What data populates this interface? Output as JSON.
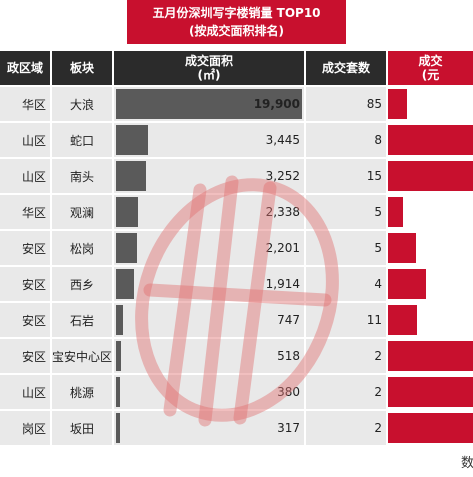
{
  "title": {
    "line1": "五月份深圳写字楼销量 TOP10",
    "line2": "(按成交面积排名)"
  },
  "headers": {
    "region": "政区域",
    "block": "板块",
    "area_line1": "成交面积",
    "area_line2": "(㎡)",
    "units": "成交套数",
    "price_line1": "成交",
    "price_line2": "(元"
  },
  "chart_data": {
    "type": "table",
    "columns": [
      "区域",
      "板块",
      "成交面积(㎡)",
      "成交套数"
    ],
    "rows": [
      {
        "region": "华区",
        "block": "大浪",
        "area": 19900,
        "area_label": "19,900",
        "units": 85,
        "units_label": "85",
        "price_bar": 0.22
      },
      {
        "region": "山区",
        "block": "蛇口",
        "area": 3445,
        "area_label": "3,445",
        "units": 8,
        "units_label": "8",
        "price_bar": 1.0
      },
      {
        "region": "山区",
        "block": "南头",
        "area": 3252,
        "area_label": "3,252",
        "units": 15,
        "units_label": "15",
        "price_bar": 1.0
      },
      {
        "region": "华区",
        "block": "观澜",
        "area": 2338,
        "area_label": "2,338",
        "units": 5,
        "units_label": "5",
        "price_bar": 0.18
      },
      {
        "region": "安区",
        "block": "松岗",
        "area": 2201,
        "area_label": "2,201",
        "units": 5,
        "units_label": "5",
        "price_bar": 0.33
      },
      {
        "region": "安区",
        "block": "西乡",
        "area": 1914,
        "area_label": "1,914",
        "units": 4,
        "units_label": "4",
        "price_bar": 0.45
      },
      {
        "region": "安区",
        "block": "石岩",
        "area": 747,
        "area_label": "747",
        "units": 11,
        "units_label": "11",
        "price_bar": 0.34
      },
      {
        "region": "安区",
        "block": "宝安中心区",
        "area": 518,
        "area_label": "518",
        "units": 2,
        "units_label": "2",
        "price_bar": 1.0
      },
      {
        "region": "山区",
        "block": "桃源",
        "area": 380,
        "area_label": "380",
        "units": 2,
        "units_label": "2",
        "price_bar": 1.0
      },
      {
        "region": "岗区",
        "block": "坂田",
        "area": 317,
        "area_label": "317",
        "units": 2,
        "units_label": "2",
        "price_bar": 1.0
      }
    ],
    "area_max": 19900
  },
  "source_text": "数",
  "colors": {
    "brand_red": "#c8102e",
    "header_dark": "#2b2b2b",
    "area_bar": "#5a5a5a",
    "row_light": "#e9e9e9",
    "row_alt": "#dcdcdc",
    "watermark": "#e07070"
  }
}
